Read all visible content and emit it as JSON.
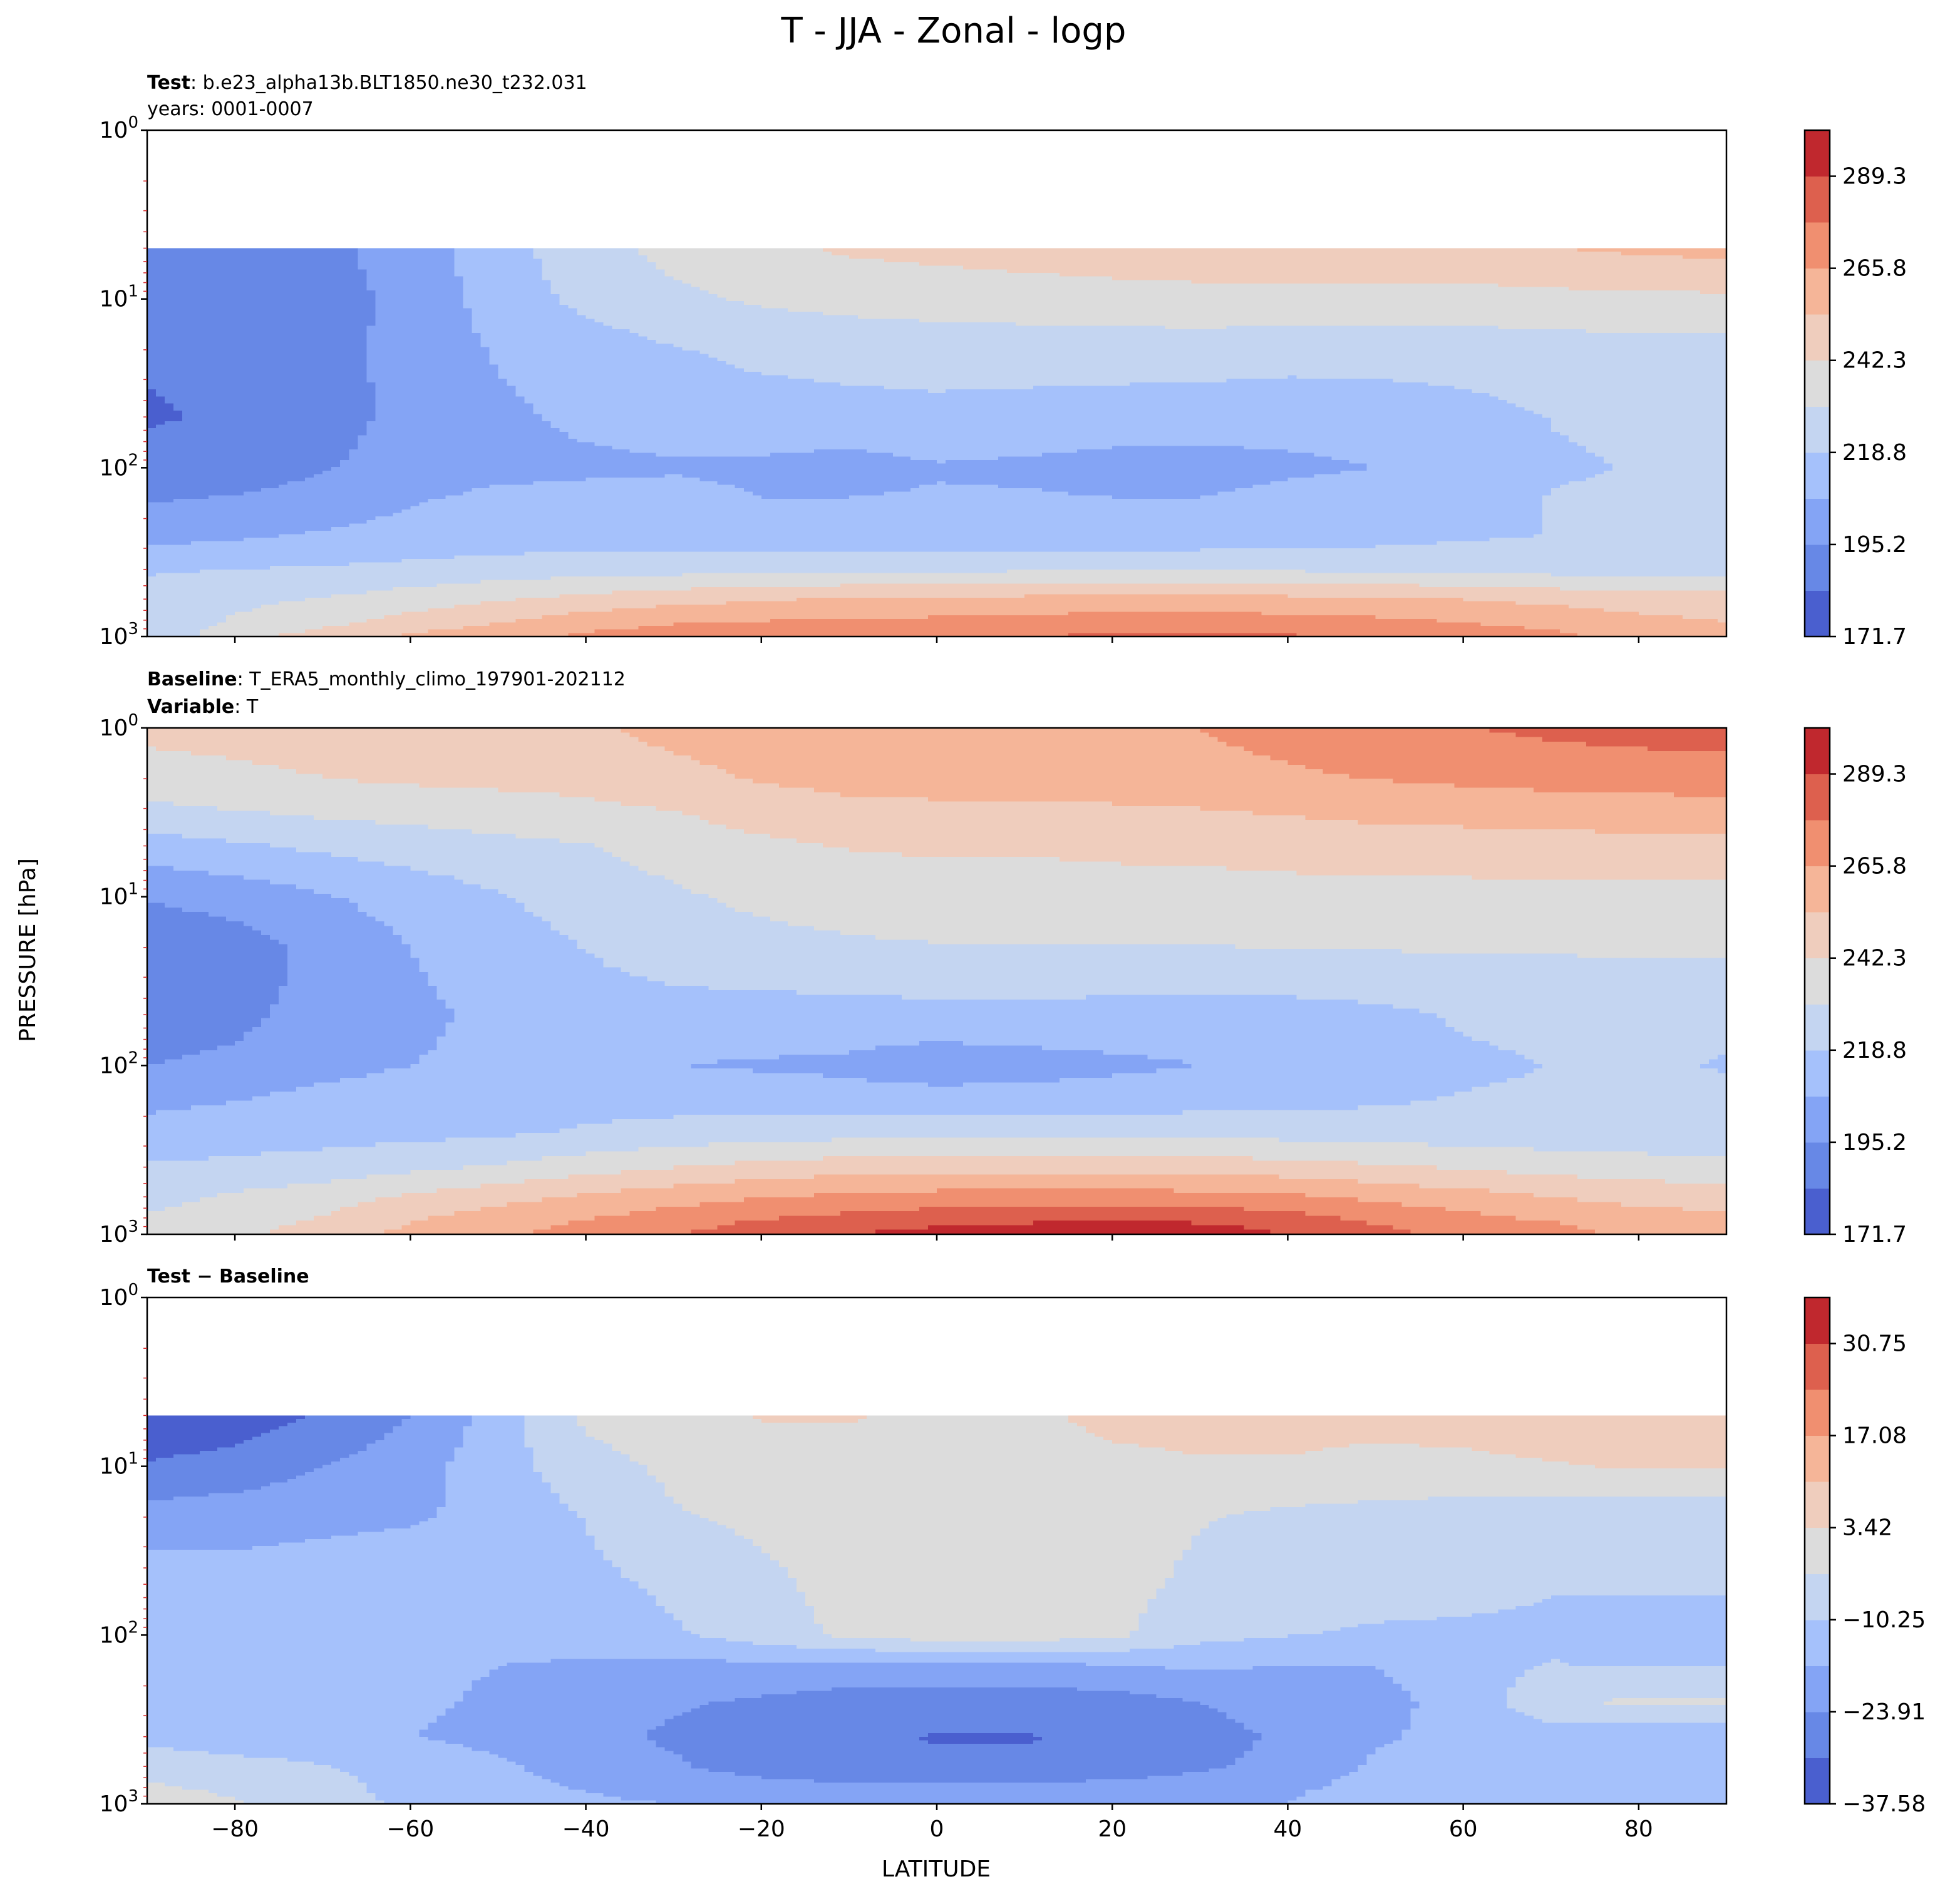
{
  "figure": {
    "title": "T - JJA - Zonal - logp",
    "ylabel": "PRESSURE [hPa]",
    "xlabel": "LATITUDE"
  },
  "colors": {
    "diverging": [
      "#4a5fcf",
      "#6788e6",
      "#84a4f5",
      "#a5c1fb",
      "#c4d5f1",
      "#dcdcdc",
      "#efcdbd",
      "#f5b598",
      "#f08f70",
      "#dd604e",
      "#c0282e"
    ],
    "axis": "#000000",
    "minor_tick": "#d62728"
  },
  "chart_data": [
    {
      "type": "contourf",
      "panel": "test",
      "header_bold": "Test",
      "header_text": ": b.e23_alpha13b.BLT1850.ne30_t232.031",
      "header_line2": "years: 0001-0007",
      "x": {
        "label": "LATITUDE",
        "range": [
          -90,
          90
        ],
        "ticks": [
          -80,
          -60,
          -40,
          -20,
          0,
          20,
          40,
          60,
          80
        ]
      },
      "y": {
        "label": "PRESSURE [hPa]",
        "scale": "log",
        "range": [
          1,
          1000
        ],
        "ticks": [
          "10^0",
          "10^1",
          "10^2",
          "10^3"
        ],
        "data_top": 5
      },
      "colorbar": {
        "min": 171.7,
        "max": 301.1,
        "ticks": [
          "171.7",
          "195.2",
          "218.8",
          "242.3",
          "265.8",
          "289.3"
        ]
      },
      "field_grid": {
        "lat": [
          -90,
          -80,
          -70,
          -60,
          -50,
          -40,
          -30,
          -20,
          -10,
          0,
          10,
          20,
          30,
          40,
          50,
          60,
          70,
          80,
          90
        ],
        "plev": [
          5,
          10,
          20,
          50,
          100,
          150,
          250,
          400,
          600,
          850,
          1000
        ],
        "values": [
          [
            186,
            187,
            192,
            201,
            214,
            226,
            234,
            240,
            244,
            246,
            248,
            250,
            251,
            251,
            251,
            252,
            254,
            256,
            258
          ],
          [
            184,
            185,
            190,
            199,
            212,
            222,
            228,
            232,
            234,
            235,
            236,
            237,
            238,
            238,
            238,
            238,
            239,
            240,
            240
          ],
          [
            184,
            185,
            190,
            200,
            208,
            213,
            218,
            222,
            224,
            225,
            225,
            225,
            225,
            224,
            224,
            224,
            225,
            226,
            226
          ],
          [
            183,
            184,
            190,
            199,
            205,
            209,
            211,
            213,
            214,
            215,
            214,
            213,
            212,
            211,
            212,
            215,
            219,
            220,
            221
          ],
          [
            185,
            186,
            194,
            201,
            204,
            205,
            206,
            205,
            203,
            206,
            205,
            203,
            203,
            205,
            207,
            214,
            218,
            219,
            219
          ],
          [
            194,
            196,
            201,
            206,
            209,
            210,
            210,
            207,
            207,
            208,
            208,
            207,
            207,
            210,
            212,
            216,
            219,
            220,
            220
          ],
          [
            202,
            205,
            208,
            210,
            212,
            213,
            212,
            210,
            209,
            209,
            209,
            209,
            210,
            212,
            214,
            217,
            219,
            220,
            220
          ],
          [
            217,
            219,
            220,
            222,
            224,
            225,
            226,
            227,
            228,
            228,
            229,
            230,
            230,
            229,
            228,
            227,
            226,
            226,
            225
          ],
          [
            226,
            228,
            231,
            236,
            241,
            246,
            250,
            253,
            255,
            256,
            257,
            258,
            258,
            257,
            256,
            254,
            251,
            249,
            248
          ],
          [
            225,
            232,
            240,
            248,
            255,
            262,
            266,
            268,
            269,
            270,
            271,
            273,
            273,
            272,
            270,
            267,
            263,
            258,
            255
          ],
          [
            222,
            238,
            248,
            256,
            262,
            268,
            272,
            273,
            274,
            275,
            277,
            280,
            281,
            279,
            276,
            273,
            269,
            262,
            258
          ]
        ]
      }
    },
    {
      "type": "contourf",
      "panel": "baseline",
      "header_bold": "Baseline",
      "header_text": ": T_ERA5_monthly_climo_197901-202112",
      "header_bold2": "Variable",
      "header_text2": ": T",
      "x": {
        "label": "LATITUDE",
        "range": [
          -90,
          90
        ],
        "ticks": [
          -80,
          -60,
          -40,
          -20,
          0,
          20,
          40,
          60,
          80
        ]
      },
      "y": {
        "label": "PRESSURE [hPa]",
        "scale": "log",
        "range": [
          1,
          1000
        ],
        "ticks": [
          "10^0",
          "10^1",
          "10^2",
          "10^3"
        ],
        "data_top": 1
      },
      "colorbar": {
        "min": 171.7,
        "max": 301.1,
        "ticks": [
          "171.7",
          "195.2",
          "218.8",
          "242.3",
          "265.8",
          "289.3"
        ]
      },
      "field_grid": {
        "lat": [
          -90,
          -80,
          -70,
          -60,
          -50,
          -40,
          -30,
          -20,
          -10,
          0,
          10,
          20,
          30,
          40,
          50,
          60,
          70,
          80,
          90
        ],
        "plev": [
          1,
          2,
          3,
          5,
          10,
          20,
          30,
          50,
          100,
          150,
          250,
          400,
          600,
          850,
          1000
        ],
        "values": [
          [
            245,
            246,
            248,
            250,
            251,
            252,
            258,
            262,
            263,
            263,
            263,
            264,
            266,
            270,
            274,
            277,
            280,
            282,
            283
          ],
          [
            238,
            240,
            242,
            244,
            245,
            246,
            250,
            255,
            258,
            259,
            259,
            260,
            262,
            264,
            266,
            268,
            270,
            271,
            272
          ],
          [
            228,
            231,
            234,
            236,
            238,
            240,
            243,
            248,
            251,
            252,
            252,
            253,
            254,
            256,
            258,
            259,
            260,
            261,
            261
          ],
          [
            214,
            217,
            221,
            224,
            227,
            230,
            235,
            240,
            243,
            244,
            244,
            245,
            246,
            247,
            248,
            249,
            250,
            250,
            250
          ],
          [
            196,
            200,
            206,
            212,
            218,
            224,
            229,
            233,
            235,
            236,
            236,
            237,
            237,
            238,
            238,
            238,
            239,
            239,
            239
          ],
          [
            186,
            190,
            198,
            207,
            213,
            219,
            224,
            227,
            229,
            230,
            230,
            230,
            230,
            231,
            231,
            232,
            232,
            233,
            233
          ],
          [
            186,
            190,
            199,
            206,
            211,
            217,
            220,
            222,
            224,
            225,
            225,
            225,
            225,
            225,
            225,
            226,
            226,
            226,
            227
          ],
          [
            188,
            192,
            200,
            205,
            209,
            213,
            214,
            213,
            213,
            214,
            214,
            213,
            212,
            213,
            216,
            220,
            221,
            222,
            222
          ],
          [
            195,
            198,
            204,
            207,
            209,
            210,
            207,
            206,
            205,
            201,
            203,
            205,
            207,
            209,
            214,
            217,
            219,
            220,
            218
          ],
          [
            204,
            206,
            209,
            211,
            213,
            214,
            213,
            211,
            210,
            210,
            210,
            211,
            212,
            214,
            216,
            219,
            220,
            221,
            221
          ],
          [
            210,
            212,
            214,
            215,
            217,
            220,
            223,
            225,
            226,
            226,
            226,
            227,
            227,
            226,
            225,
            224,
            223,
            222,
            222
          ],
          [
            220,
            222,
            224,
            228,
            232,
            237,
            242,
            246,
            249,
            250,
            250,
            250,
            249,
            247,
            244,
            241,
            238,
            236,
            235
          ],
          [
            227,
            232,
            237,
            244,
            250,
            256,
            261,
            265,
            268,
            270,
            271,
            271,
            270,
            268,
            263,
            259,
            254,
            250,
            248
          ],
          [
            232,
            238,
            244,
            254,
            261,
            267,
            273,
            279,
            283,
            287,
            289,
            290,
            289,
            285,
            277,
            271,
            266,
            261,
            258
          ],
          [
            234,
            240,
            248,
            257,
            264,
            270,
            277,
            283,
            289,
            294,
            297,
            297,
            295,
            289,
            281,
            275,
            269,
            264,
            260
          ]
        ]
      }
    },
    {
      "type": "contourf",
      "panel": "difference",
      "header_bold": "Test − Baseline",
      "x": {
        "label": "LATITUDE",
        "range": [
          -90,
          90
        ],
        "ticks": [
          -80,
          -60,
          -40,
          -20,
          0,
          20,
          40,
          60,
          80
        ]
      },
      "y": {
        "label": "PRESSURE [hPa]",
        "scale": "log",
        "range": [
          1,
          1000
        ],
        "ticks": [
          "10^0",
          "10^1",
          "10^2",
          "10^3"
        ],
        "data_top": 5
      },
      "colorbar": {
        "min": -37.58,
        "max": 37.58,
        "ticks": [
          "−37.58",
          "−23.91",
          "−10.25",
          "3.42",
          "17.08",
          "30.75"
        ]
      },
      "field_grid": {
        "lat": [
          -90,
          -80,
          -70,
          -60,
          -50,
          -40,
          -30,
          -20,
          -10,
          0,
          10,
          20,
          30,
          40,
          50,
          60,
          70,
          80,
          90
        ],
        "plev": [
          5,
          10,
          20,
          50,
          100,
          150,
          250,
          400,
          600,
          850,
          1000
        ],
        "values": [
          [
            -37,
            -35,
            -30,
            -24,
            -14,
            -2,
            1,
            4,
            4,
            2,
            2,
            5,
            5,
            5,
            5,
            6,
            7,
            8,
            8
          ],
          [
            -30,
            -28,
            -24,
            -20,
            -13,
            -6,
            -2,
            -1,
            0,
            1,
            1,
            2,
            3,
            3,
            2,
            2,
            3,
            4,
            4
          ],
          [
            -21,
            -20,
            -19,
            -18,
            -15,
            -10,
            -4,
            -2,
            0,
            1,
            1,
            0,
            -3,
            -5,
            -6,
            -7,
            -8,
            -8,
            -8
          ],
          [
            -13,
            -14,
            -13,
            -12,
            -13,
            -12,
            -9,
            -5,
            -1,
            0,
            0,
            -1,
            -5,
            -7,
            -8,
            -9,
            -10,
            -10,
            -10
          ],
          [
            -11,
            -12,
            -12,
            -13,
            -13,
            -14,
            -11,
            -7,
            -2,
            0,
            0,
            -2,
            -8,
            -10,
            -11,
            -11,
            -11,
            -11,
            -11
          ],
          [
            -11,
            -12,
            -14,
            -16,
            -17,
            -18,
            -19,
            -18,
            -19,
            -18,
            -18,
            -17,
            -16,
            -17,
            -17,
            -13,
            -10,
            -11,
            -11
          ],
          [
            -12,
            -13,
            -13,
            -16,
            -18,
            -21,
            -23,
            -25,
            -27,
            -28,
            -28,
            -27,
            -24,
            -21,
            -19,
            -15,
            -5,
            -2,
            -2
          ],
          [
            -13,
            -14,
            -14,
            -17,
            -19,
            -22,
            -25,
            -28,
            -30,
            -31,
            -31,
            -30,
            -26,
            -23,
            -18,
            -15,
            -14,
            -15,
            -15
          ],
          [
            -5,
            -8,
            -10,
            -13,
            -16,
            -20,
            -23,
            -27,
            -29,
            -30,
            -30,
            -28,
            -25,
            -22,
            -16,
            -15,
            -16,
            -16,
            -16
          ],
          [
            -2,
            -4,
            -7,
            -13,
            -15,
            -17,
            -19,
            -20,
            -21,
            -21,
            -21,
            -20,
            -20,
            -18,
            -14,
            -14,
            -15,
            -17,
            -17
          ],
          [
            -1,
            -3,
            -6,
            -12,
            -14,
            -16,
            -17,
            -18,
            -18,
            -19,
            -19,
            -19,
            -18,
            -17,
            -15,
            -15,
            -16,
            -17,
            -17
          ]
        ]
      }
    }
  ]
}
